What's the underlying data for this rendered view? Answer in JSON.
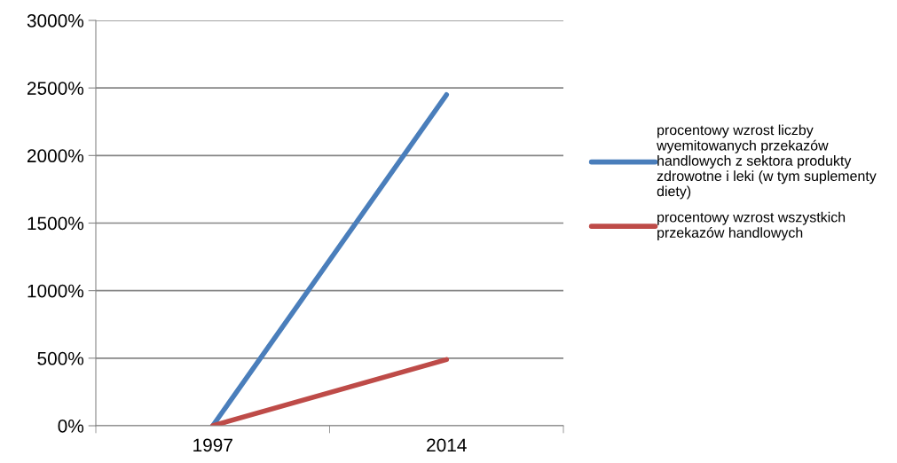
{
  "chart_data": {
    "type": "line",
    "categories": [
      "1997",
      "2014"
    ],
    "series": [
      {
        "name": "procentowy wzrost liczby\nwyemitowanych przekazów\nhandlowych z sektora produkty\nzdrowotne i leki (w tym suplementy\ndiety)",
        "color": "#4a7ebb",
        "values": [
          0,
          2450
        ]
      },
      {
        "name": "procentowy wzrost wszystkich\nprzekazów handlowych",
        "color": "#be4b48",
        "values": [
          0,
          490
        ]
      }
    ],
    "ylim": [
      0,
      3000
    ],
    "yticks": [
      {
        "value": 0,
        "label": "0%"
      },
      {
        "value": 500,
        "label": "500%"
      },
      {
        "value": 1000,
        "label": "1000%"
      },
      {
        "value": 1500,
        "label": "1500%"
      },
      {
        "value": 2000,
        "label": "2000%"
      },
      {
        "value": 2500,
        "label": "2500%"
      },
      {
        "value": 3000,
        "label": "3000%"
      }
    ],
    "grid": "y",
    "legend": "right",
    "marker": "none",
    "line_style": "solid"
  }
}
